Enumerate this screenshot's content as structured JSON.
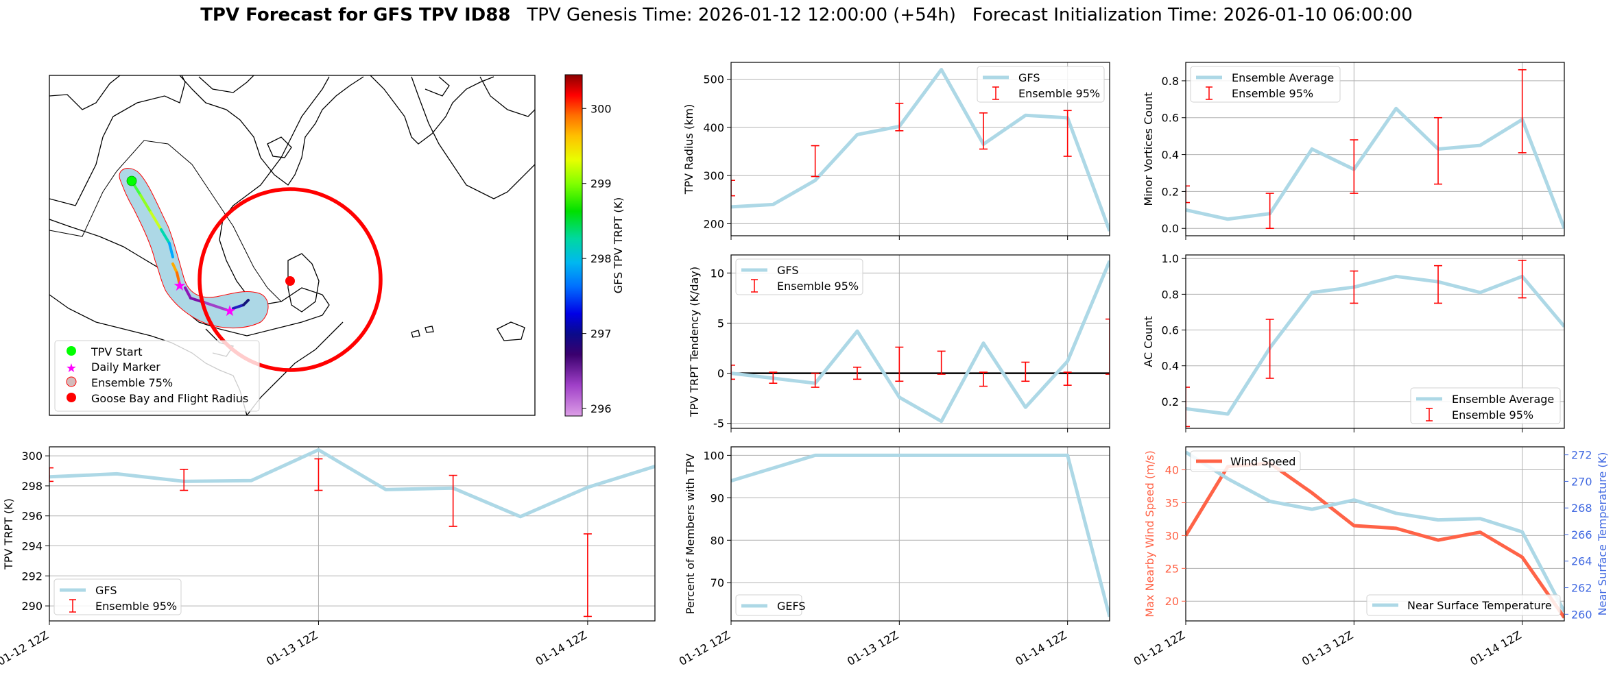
{
  "figure": {
    "title_bold": "TPV Forecast for GFS TPV ID88",
    "title_genesis": "TPV Genesis Time: 2026-01-12 12:00:00 (+54h)",
    "title_init": "Forecast Initialization Time: 2026-01-10 06:00:00"
  },
  "colors": {
    "gfs_line": "#add8e6",
    "ensemble_bar": "#ff0000",
    "wind_line": "#ff6347",
    "temp_axis": "#4169e1",
    "circle": "#ff0000"
  },
  "chart_data": [
    {
      "id": "map",
      "type": "map",
      "colorbar": {
        "label": "GFS TPV TRPT (K)",
        "range": [
          295.9,
          300.45
        ],
        "ticks": [
          "296",
          "297",
          "298",
          "299",
          "300"
        ]
      },
      "legend": [
        "TPV Start",
        "Daily Marker",
        "Ensemble 75%",
        "Goose Bay and Flight Radius"
      ],
      "track": [
        {
          "lon": -67.5,
          "lat": 63.5,
          "trpt": 298.6
        },
        {
          "lon": -65.5,
          "lat": 60.5,
          "trpt": 298.3
        },
        {
          "lon": -63.5,
          "lat": 57.0,
          "trpt": 297.9
        },
        {
          "lon": -62.0,
          "lat": 54.5,
          "trpt": 298.8
        },
        {
          "lon": -61.5,
          "lat": 53.0,
          "trpt": 296.5
        },
        {
          "lon": -60.5,
          "lat": 51.8,
          "trpt": 296.2
        },
        {
          "lon": -56.0,
          "lat": 51.2,
          "trpt": 295.95
        },
        {
          "lon": -52.0,
          "lat": 51.8,
          "trpt": 296.8
        }
      ]
    },
    {
      "id": "radius",
      "type": "line",
      "ylabel": "TPV Radius (km)",
      "ylim": [
        175,
        535
      ],
      "yticks": [
        200,
        300,
        400,
        500
      ],
      "legend": [
        "GFS",
        "Ensemble 95%"
      ],
      "legend_loc": "upper right",
      "series": [
        {
          "name": "GFS",
          "x": [
            0,
            0.25,
            0.5,
            0.75,
            1.0,
            1.25,
            1.5,
            1.75,
            2.0,
            2.25
          ],
          "values": [
            235,
            240,
            290,
            385,
            402,
            520,
            365,
            425,
            420,
            185
          ]
        }
      ],
      "ensemble": [
        {
          "x": 0,
          "low": 258,
          "high": 290
        },
        {
          "x": 0.5,
          "low": 298,
          "high": 362
        },
        {
          "x": 1.0,
          "low": 393,
          "high": 450
        },
        {
          "x": 1.5,
          "low": 355,
          "high": 430
        },
        {
          "x": 2.0,
          "low": 340,
          "high": 435
        }
      ]
    },
    {
      "id": "minor",
      "type": "line",
      "ylabel": "Minor Vortices Count",
      "ylim": [
        -0.04,
        0.9
      ],
      "yticks": [
        0.0,
        0.2,
        0.4,
        0.6,
        0.8
      ],
      "legend": [
        "Ensemble Average",
        "Ensemble 95%"
      ],
      "legend_loc": "upper left",
      "series": [
        {
          "name": "Ensemble Average",
          "x": [
            0,
            0.25,
            0.5,
            0.75,
            1.0,
            1.25,
            1.5,
            1.75,
            2.0,
            2.25
          ],
          "values": [
            0.1,
            0.05,
            0.08,
            0.43,
            0.32,
            0.65,
            0.43,
            0.45,
            0.59,
            0.0
          ]
        }
      ],
      "ensemble": [
        {
          "x": 0,
          "low": 0.14,
          "high": 0.23
        },
        {
          "x": 0.5,
          "low": 0.0,
          "high": 0.19
        },
        {
          "x": 1.0,
          "low": 0.19,
          "high": 0.48
        },
        {
          "x": 1.5,
          "low": 0.24,
          "high": 0.6
        },
        {
          "x": 2.0,
          "low": 0.41,
          "high": 0.86
        }
      ]
    },
    {
      "id": "tendency",
      "type": "line",
      "ylabel": "TPV TRPT Tendency (K/day)",
      "ylim": [
        -5.5,
        11.8
      ],
      "yticks": [
        -5,
        0,
        5,
        10
      ],
      "zero_line": true,
      "legend": [
        "GFS",
        "Ensemble 95%"
      ],
      "legend_loc": "upper left",
      "series": [
        {
          "name": "GFS",
          "x": [
            0,
            0.25,
            0.5,
            0.75,
            1.0,
            1.25,
            1.5,
            1.75,
            2.0,
            2.25
          ],
          "values": [
            0,
            -0.5,
            -1.0,
            4.2,
            -2.4,
            -4.8,
            3.0,
            -3.4,
            1.2,
            11.2
          ]
        }
      ],
      "ensemble": [
        {
          "x": 0,
          "low": -0.6,
          "high": 0.8
        },
        {
          "x": 0.25,
          "low": -1.0,
          "high": 0.1
        },
        {
          "x": 0.5,
          "low": -1.4,
          "high": 0.0
        },
        {
          "x": 0.75,
          "low": -0.6,
          "high": 0.6
        },
        {
          "x": 1.0,
          "low": -0.8,
          "high": 2.6
        },
        {
          "x": 1.25,
          "low": -0.1,
          "high": 2.2
        },
        {
          "x": 1.5,
          "low": -1.3,
          "high": 0.1
        },
        {
          "x": 1.75,
          "low": -0.8,
          "high": 1.1
        },
        {
          "x": 2.0,
          "low": -1.2,
          "high": 0.1
        },
        {
          "x": 2.25,
          "low": -0.1,
          "high": 5.4
        }
      ]
    },
    {
      "id": "ac",
      "type": "line",
      "ylabel": "AC Count",
      "ylim": [
        0.05,
        1.02
      ],
      "yticks": [
        0.2,
        0.4,
        0.6,
        0.8,
        1.0
      ],
      "legend": [
        "Ensemble Average",
        "Ensemble 95%"
      ],
      "legend_loc": "lower right",
      "series": [
        {
          "name": "Ensemble Average",
          "x": [
            0,
            0.25,
            0.5,
            0.75,
            1.0,
            1.25,
            1.5,
            1.75,
            2.0,
            2.25
          ],
          "values": [
            0.16,
            0.13,
            0.5,
            0.81,
            0.84,
            0.9,
            0.87,
            0.81,
            0.9,
            0.62
          ]
        }
      ],
      "ensemble": [
        {
          "x": 0,
          "low": 0.06,
          "high": 0.28
        },
        {
          "x": 0.5,
          "low": 0.33,
          "high": 0.66
        },
        {
          "x": 1.0,
          "low": 0.75,
          "high": 0.93
        },
        {
          "x": 1.5,
          "low": 0.75,
          "high": 0.96
        },
        {
          "x": 2.0,
          "low": 0.78,
          "high": 0.99
        }
      ]
    },
    {
      "id": "trpt",
      "type": "line",
      "ylabel": "TPV TRPT (K)",
      "ylim": [
        289,
        300.6
      ],
      "yticks": [
        290,
        292,
        294,
        296,
        298,
        300
      ],
      "legend": [
        "GFS",
        "Ensemble 95%"
      ],
      "legend_loc": "lower left",
      "series": [
        {
          "name": "GFS",
          "x": [
            0,
            0.25,
            0.5,
            0.75,
            1.0,
            1.25,
            1.5,
            1.75,
            2.0,
            2.25
          ],
          "values": [
            298.6,
            298.8,
            298.3,
            298.35,
            300.4,
            297.75,
            297.85,
            295.95,
            297.9,
            299.3
          ]
        }
      ],
      "ensemble": [
        {
          "x": 0,
          "low": 298.3,
          "high": 299.2
        },
        {
          "x": 0.5,
          "low": 297.7,
          "high": 299.1
        },
        {
          "x": 1.0,
          "low": 297.7,
          "high": 299.8
        },
        {
          "x": 1.5,
          "low": 295.3,
          "high": 298.7
        },
        {
          "x": 2.0,
          "low": 289.3,
          "high": 294.8
        }
      ]
    },
    {
      "id": "members",
      "type": "line",
      "ylabel": "Percent of Members with TPV",
      "ylim": [
        61,
        102
      ],
      "yticks": [
        70,
        80,
        90,
        100
      ],
      "legend": [
        "GEFS"
      ],
      "legend_loc": "lower left",
      "series": [
        {
          "name": "GEFS",
          "x": [
            0,
            0.25,
            0.5,
            0.75,
            1.0,
            1.25,
            1.5,
            1.75,
            2.0,
            2.25
          ],
          "values": [
            94,
            97,
            100,
            100,
            100,
            100,
            100,
            100,
            100,
            62
          ]
        }
      ],
      "ensemble": []
    },
    {
      "id": "wind",
      "type": "line",
      "ylabel": "Max Nearby Wind Speed (m/s)",
      "y2label": "Near Surface Temperature (K)",
      "ylim": [
        17,
        43.5
      ],
      "yticks": [
        20,
        25,
        30,
        35,
        40
      ],
      "y2lim": [
        259.5,
        272.6
      ],
      "y2ticks": [
        260,
        262,
        264,
        266,
        268,
        270,
        272
      ],
      "legend": [
        "Wind Speed"
      ],
      "legend2": [
        "Near Surface Temperature"
      ],
      "series": [
        {
          "name": "Wind Speed",
          "axis": "left",
          "x": [
            0,
            0.25,
            0.5,
            0.75,
            1.0,
            1.25,
            1.5,
            1.75,
            2.0,
            2.25
          ],
          "values": [
            30,
            40.5,
            41.0,
            36.5,
            31.5,
            31.1,
            29.3,
            30.5,
            26.7,
            17.5
          ]
        },
        {
          "name": "Near Surface Temperature",
          "axis": "right",
          "x": [
            0,
            0.25,
            0.5,
            0.75,
            1.0,
            1.25,
            1.5,
            1.75,
            2.0,
            2.25
          ],
          "values": [
            272.2,
            270.2,
            268.5,
            267.9,
            268.6,
            267.6,
            267.1,
            267.2,
            266.2,
            260.2
          ]
        }
      ]
    }
  ],
  "xaxis": {
    "ticks": [
      0,
      1,
      2
    ],
    "labels": [
      "01-12 12Z",
      "01-13 12Z",
      "01-14 12Z"
    ],
    "range": [
      0,
      2.25
    ]
  }
}
